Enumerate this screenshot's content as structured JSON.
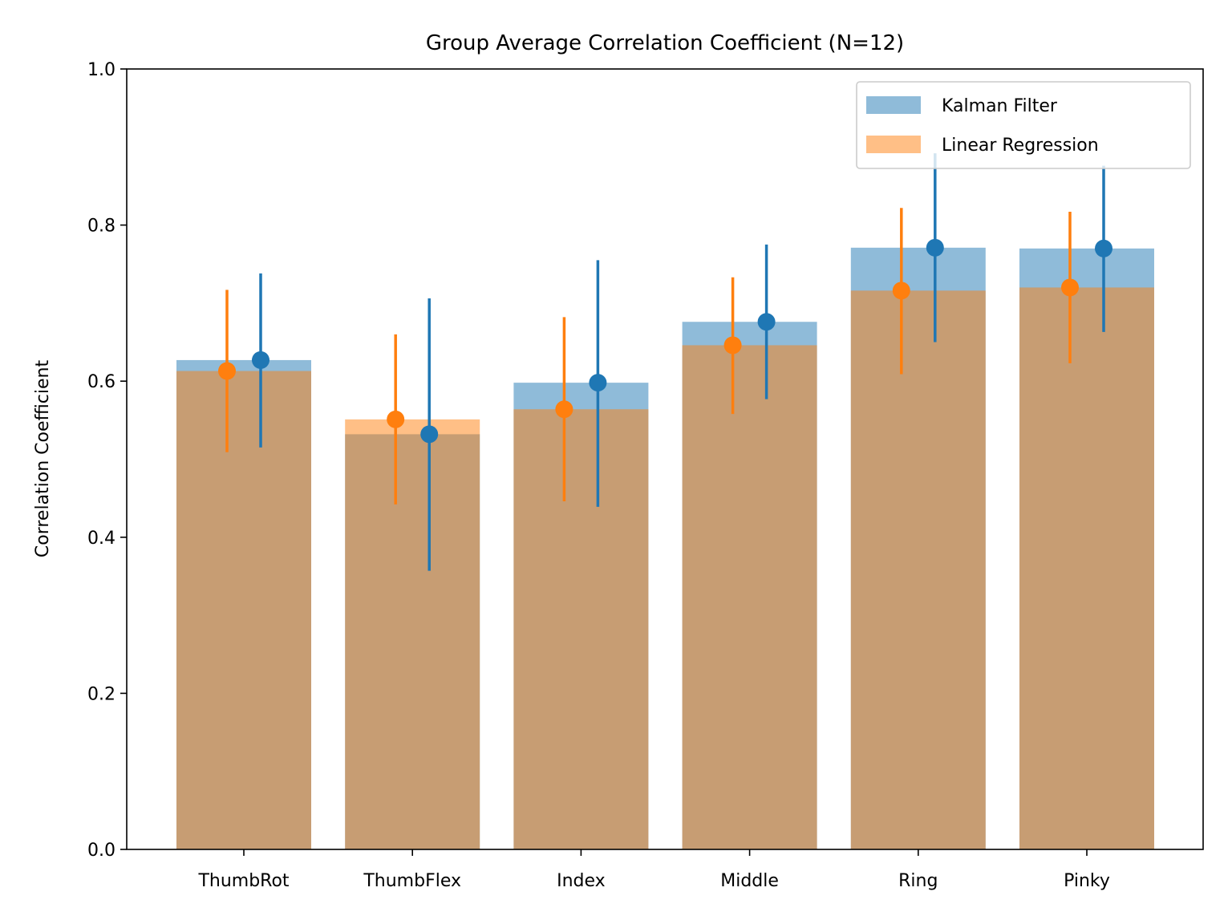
{
  "chart_data": {
    "type": "bar",
    "title": "Group Average Correlation Coefficient (N=12)",
    "xlabel": "",
    "ylabel": "Correlation Coefficient",
    "ylim": [
      0,
      1.0
    ],
    "yticks": [
      "0.0",
      "0.2",
      "0.4",
      "0.6",
      "0.8",
      "1.0"
    ],
    "categories": [
      "ThumbRot",
      "ThumbFlex",
      "Index",
      "Middle",
      "Ring",
      "Pinky"
    ],
    "legend_position": "top-right",
    "grid": false,
    "series": [
      {
        "name": "Kalman Filter",
        "color": "#1f77b4",
        "values": [
          0.627,
          0.532,
          0.598,
          0.676,
          0.771,
          0.77
        ],
        "err_low": [
          0.515,
          0.357,
          0.439,
          0.577,
          0.65,
          0.663
        ],
        "err_high": [
          0.738,
          0.706,
          0.755,
          0.775,
          0.892,
          0.876
        ]
      },
      {
        "name": "Linear Regression",
        "color": "#ff7f0e",
        "values": [
          0.613,
          0.551,
          0.564,
          0.646,
          0.716,
          0.72
        ],
        "err_low": [
          0.509,
          0.442,
          0.446,
          0.558,
          0.609,
          0.623
        ],
        "err_high": [
          0.717,
          0.66,
          0.682,
          0.733,
          0.822,
          0.817
        ]
      }
    ]
  }
}
